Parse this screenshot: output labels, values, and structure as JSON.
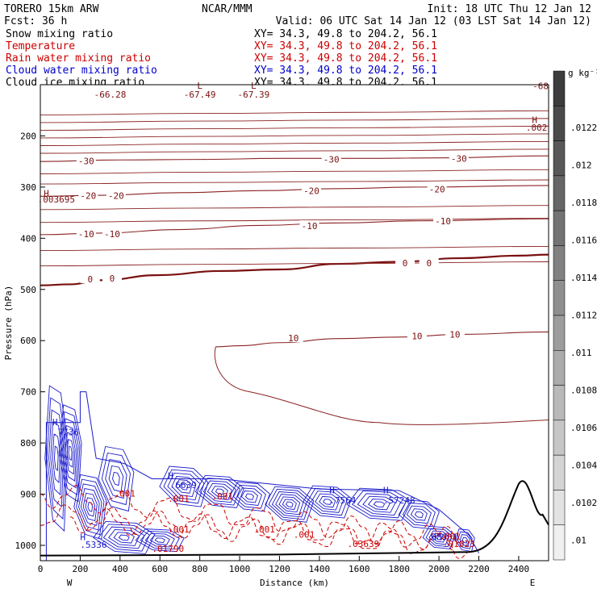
{
  "header": {
    "model": "TORERO   15km ARW",
    "fcst": "Fcst:    36 h",
    "org": "NCAR/MMM",
    "init": "Init: 18 UTC Thu 12 Jan 12",
    "valid": "Valid: 06 UTC Sat 14 Jan 12 (03 LST Sat 14 Jan 12)",
    "fields": [
      {
        "name": "Snow mixing ratio",
        "color": "#000000",
        "xy": "XY=  34.3, 49.8 to 204.2, 56.1",
        "xy_color": "#000000"
      },
      {
        "name": "Temperature",
        "color": "#cc0000",
        "xy": "XY=  34.3, 49.8 to 204.2, 56.1",
        "xy_color": "#cc0000"
      },
      {
        "name": "Rain water mixing ratio",
        "color": "#cc0000",
        "xy": "XY=  34.3, 49.8 to 204.2, 56.1",
        "xy_color": "#cc0000"
      },
      {
        "name": "Cloud water mixing ratio",
        "color": "#0000cc",
        "xy": "XY=  34.3, 49.8 to 204.2, 56.1",
        "xy_color": "#0000cc"
      },
      {
        "name": "Cloud ice mixing ratio",
        "color": "#000000",
        "xy": "XY=  34.3, 49.8 to 204.2, 56.1",
        "xy_color": "#000000"
      }
    ]
  },
  "chart_data": {
    "type": "contour",
    "xlabel": "Distance (km)",
    "ylabel": "Pressure (hPa)",
    "x_ticks": [
      0,
      200,
      400,
      600,
      800,
      1000,
      1200,
      1400,
      1600,
      1800,
      2000,
      2200,
      2400
    ],
    "y_ticks": [
      200,
      300,
      400,
      500,
      600,
      700,
      800,
      900,
      1000
    ],
    "xlim": [
      0,
      2550
    ],
    "ylim": [
      1030,
      100
    ],
    "end_labels": {
      "left": "W",
      "right": "E"
    },
    "temperature_contours": [
      {
        "level": -30,
        "points": [
          [
            0,
            250
          ],
          [
            400,
            247
          ],
          [
            800,
            246
          ],
          [
            1200,
            244
          ],
          [
            1600,
            244
          ],
          [
            2000,
            243
          ],
          [
            2550,
            239
          ]
        ]
      },
      {
        "level": -20,
        "points": [
          [
            0,
            318
          ],
          [
            300,
            316
          ],
          [
            700,
            311
          ],
          [
            1100,
            307
          ],
          [
            1500,
            303
          ],
          [
            1900,
            300
          ],
          [
            2550,
            297
          ]
        ]
      },
      {
        "level": -10,
        "points": [
          [
            0,
            393
          ],
          [
            300,
            390
          ],
          [
            700,
            383
          ],
          [
            1100,
            375
          ],
          [
            1500,
            370
          ],
          [
            1900,
            366
          ],
          [
            2550,
            362
          ]
        ]
      },
      {
        "level": 0,
        "points": [
          [
            0,
            492
          ],
          [
            150,
            490
          ],
          [
            300,
            482
          ],
          [
            600,
            472
          ],
          [
            900,
            464
          ],
          [
            1200,
            461
          ],
          [
            1500,
            450
          ],
          [
            1800,
            446
          ],
          [
            2100,
            439
          ],
          [
            2400,
            434
          ],
          [
            2550,
            432
          ]
        ]
      },
      {
        "level": 10,
        "points": [
          [
            880,
            612
          ],
          [
            1000,
            610
          ],
          [
            1200,
            604
          ],
          [
            1500,
            596
          ],
          [
            1800,
            593
          ],
          [
            2100,
            588
          ],
          [
            2550,
            583
          ]
        ]
      }
    ],
    "temperature_labels": [
      {
        "level": "-30",
        "x": 230,
        "p": 249
      },
      {
        "level": "-30",
        "x": 1460,
        "p": 246
      },
      {
        "level": "-30",
        "x": 2100,
        "p": 244
      },
      {
        "level": "-20",
        "x": 240,
        "p": 317
      },
      {
        "level": "-20",
        "x": 380,
        "p": 317
      },
      {
        "level": "-20",
        "x": 1360,
        "p": 307
      },
      {
        "level": "-20",
        "x": 1990,
        "p": 304
      },
      {
        "level": "-10",
        "x": 230,
        "p": 392
      },
      {
        "level": "-10",
        "x": 360,
        "p": 392
      },
      {
        "level": "-10",
        "x": 1350,
        "p": 376
      },
      {
        "level": "-10",
        "x": 2020,
        "p": 366
      },
      {
        "level": "0",
        "x": 250,
        "p": 480
      },
      {
        "level": "0",
        "x": 360,
        "p": 478
      },
      {
        "level": "0",
        "x": 1830,
        "p": 448
      },
      {
        "level": "0",
        "x": 1950,
        "p": 448
      },
      {
        "level": "10",
        "x": 1270,
        "p": 595
      },
      {
        "level": "10",
        "x": 1890,
        "p": 591
      },
      {
        "level": "10",
        "x": 2080,
        "p": 588
      }
    ],
    "cloud_water_labels": [
      {
        "text": "H",
        "x": 60,
        "p": 765
      },
      {
        "text": ".7736",
        "x": 60,
        "p": 785
      },
      {
        "text": "H",
        "x": 640,
        "p": 870
      },
      {
        "text": ".6639",
        "x": 650,
        "p": 888
      },
      {
        "text": "H",
        "x": 1450,
        "p": 898
      },
      {
        "text": ".7564",
        "x": 1450,
        "p": 918
      },
      {
        "text": "H",
        "x": 1720,
        "p": 898
      },
      {
        "text": ".57248",
        "x": 1720,
        "p": 918
      },
      {
        "text": "H",
        "x": 200,
        "p": 990
      },
      {
        "text": ".5336",
        "x": 200,
        "p": 1005
      },
      {
        "text": "H",
        "x": 1960,
        "p": 990
      },
      {
        "text": ".8961",
        "x": 1960,
        "p": 990
      }
    ],
    "rain_labels": [
      {
        "text": ".001",
        "x": 370,
        "p": 905
      },
      {
        "text": ".001",
        "x": 640,
        "p": 915
      },
      {
        "text": ".001",
        "x": 860,
        "p": 910
      },
      {
        "text": ".001",
        "x": 640,
        "p": 975
      },
      {
        "text": ".001",
        "x": 1070,
        "p": 975
      },
      {
        "text": ".001",
        "x": 1270,
        "p": 985
      },
      {
        "text": ".001",
        "x": 2000,
        "p": 988
      },
      {
        "text": ".03639",
        "x": 1540,
        "p": 1003
      },
      {
        "text": ".01790",
        "x": 560,
        "p": 1013
      },
      {
        "text": ".01023",
        "x": 2020,
        "p": 1003
      }
    ],
    "top_labels": [
      {
        "text": "-66.28",
        "x": 350,
        "p": 125
      },
      {
        "text": "L",
        "x": 800,
        "p": 108
      },
      {
        "text": "-67.49",
        "x": 800,
        "p": 125
      },
      {
        "text": "L",
        "x": 1070,
        "p": 108
      },
      {
        "text": "-67.39",
        "x": 1070,
        "p": 125
      },
      {
        "text": "-68",
        "x": 2510,
        "p": 109
      },
      {
        "text": "H",
        "x": 2480,
        "p": 175
      },
      {
        "text": ".002",
        "x": 2490,
        "p": 190
      },
      {
        "text": "H",
        "x": 30,
        "p": 318
      },
      {
        "text": ".003695",
        "x": 80,
        "p": 330
      }
    ],
    "colorbar": {
      "unit": "g kg⁻¹",
      "ticks": [
        ".0122",
        ".012",
        ".0118",
        ".0116",
        ".0114",
        ".0112",
        ".011",
        ".0108",
        ".0106",
        ".0104",
        ".0102",
        ".01"
      ]
    }
  }
}
